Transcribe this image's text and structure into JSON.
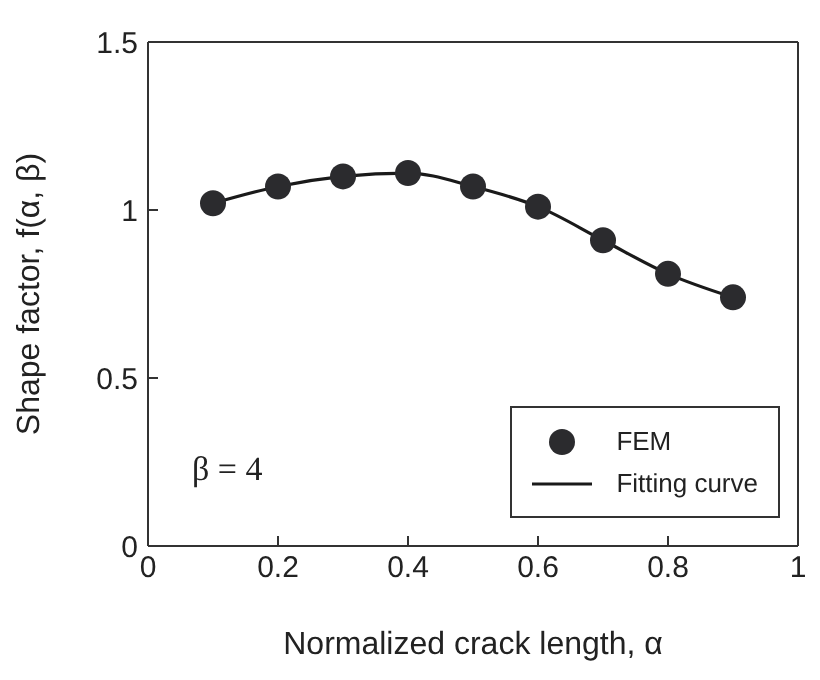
{
  "chart_data": {
    "type": "line",
    "xlabel": "Normalized crack length, α",
    "ylabel": "Shape factor,  f(α, β)",
    "xlim": [
      0,
      1
    ],
    "ylim": [
      0,
      1.5
    ],
    "xticks": [
      0,
      0.2,
      0.4,
      0.6,
      0.8,
      1
    ],
    "yticks": [
      0,
      0.5,
      1,
      1.5
    ],
    "grid": false,
    "legend": "bottom right",
    "annotations": [
      "β = 4"
    ],
    "series": [
      {
        "name": "FEM",
        "type": "scatter",
        "marker": "circle",
        "color": "#2b2b2e",
        "x": [
          0.1,
          0.2,
          0.3,
          0.4,
          0.5,
          0.6,
          0.7,
          0.8,
          0.9
        ],
        "values": [
          1.02,
          1.07,
          1.1,
          1.11,
          1.07,
          1.01,
          0.91,
          0.81,
          0.74
        ]
      },
      {
        "name": "Fitting curve",
        "marker": "none",
        "line_style": "solid",
        "color": "#1a1a1a",
        "x": [
          0.1,
          0.2,
          0.3,
          0.4,
          0.5,
          0.6,
          0.7,
          0.8,
          0.9
        ],
        "values": [
          1.02,
          1.07,
          1.1,
          1.11,
          1.07,
          1.01,
          0.91,
          0.81,
          0.74
        ]
      }
    ]
  }
}
